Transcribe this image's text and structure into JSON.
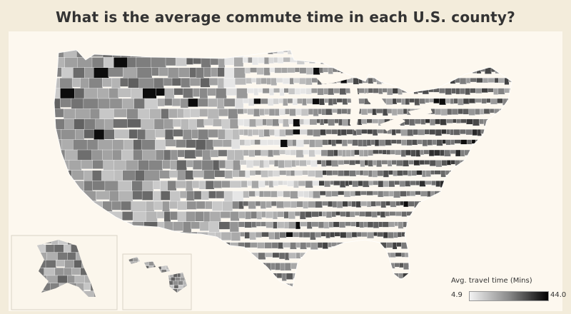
{
  "title": "What is the average commute time in each U.S. county?",
  "legend": {
    "title": "Avg. travel time (Mins)",
    "min_label": "4.9",
    "max_label": "44.0",
    "min_value": 4.9,
    "max_value": 44.0,
    "color_light": "#f2f2f2",
    "color_dark": "#000000"
  },
  "map": {
    "region": "contiguous-united-states",
    "insets": [
      "alaska",
      "hawaii"
    ],
    "encoding": "choropleth-grayscale-by-county"
  }
}
